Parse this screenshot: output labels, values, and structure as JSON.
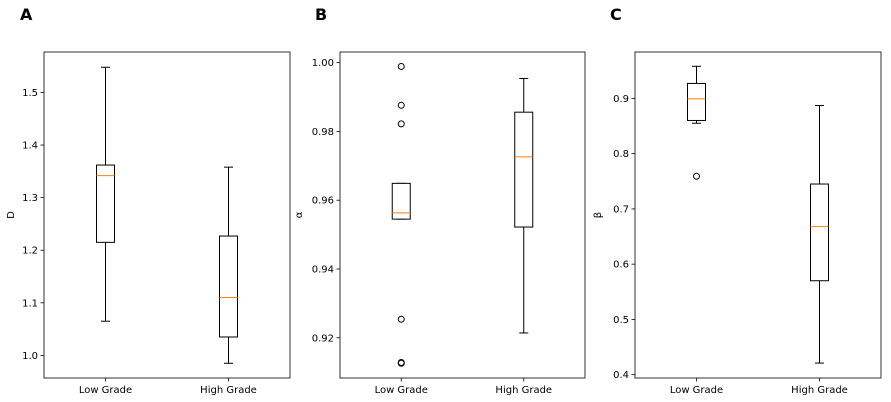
{
  "chart_data": [
    {
      "type": "box",
      "panel_label": "A",
      "ylabel": "D",
      "categories": [
        "Low Grade",
        "High Grade"
      ],
      "ylim": [
        0.957,
        1.577
      ],
      "yticks": [
        1.0,
        1.1,
        1.2,
        1.3,
        1.4,
        1.5
      ],
      "ytick_labels": [
        "1.0",
        "1.1",
        "1.2",
        "1.3",
        "1.4",
        "1.5"
      ],
      "boxes": [
        {
          "whislo": 1.065,
          "q1": 1.215,
          "med": 1.342,
          "q3": 1.362,
          "whishi": 1.548,
          "fliers": []
        },
        {
          "whislo": 0.985,
          "q1": 1.035,
          "med": 1.11,
          "q3": 1.227,
          "whishi": 1.358,
          "fliers": []
        }
      ]
    },
    {
      "type": "box",
      "panel_label": "B",
      "ylabel": "α",
      "categories": [
        "Low Grade",
        "High Grade"
      ],
      "ylim": [
        0.9083,
        1.0031
      ],
      "yticks": [
        0.92,
        0.94,
        0.96,
        0.98,
        1.0
      ],
      "ytick_labels": [
        "0.92",
        "0.94",
        "0.96",
        "0.98",
        "1.00"
      ],
      "boxes": [
        {
          "whislo": 0.9545,
          "q1": 0.9545,
          "med": 0.9563,
          "q3": 0.9649,
          "whishi": 0.9649,
          "fliers": [
            0.9989,
            0.9876,
            0.9822,
            0.9254,
            0.9128,
            0.9126
          ]
        },
        {
          "whislo": 0.9214,
          "q1": 0.9522,
          "med": 0.9726,
          "q3": 0.9856,
          "whishi": 0.9954,
          "fliers": []
        }
      ]
    },
    {
      "type": "box",
      "panel_label": "C",
      "ylabel": "β",
      "categories": [
        "Low Grade",
        "High Grade"
      ],
      "ylim": [
        0.394,
        0.9839
      ],
      "yticks": [
        0.4,
        0.5,
        0.6,
        0.7,
        0.8,
        0.9
      ],
      "ytick_labels": [
        "0.4",
        "0.5",
        "0.6",
        "0.7",
        "0.8",
        "0.9"
      ],
      "boxes": [
        {
          "whislo": 0.855,
          "q1": 0.86,
          "med": 0.899,
          "q3": 0.927,
          "whishi": 0.958,
          "fliers": [
            0.759
          ]
        },
        {
          "whislo": 0.421,
          "q1": 0.57,
          "med": 0.668,
          "q3": 0.745,
          "whishi": 0.887,
          "fliers": []
        }
      ]
    }
  ],
  "colors": {
    "median": "#ff7f0e",
    "box": "#000000"
  }
}
